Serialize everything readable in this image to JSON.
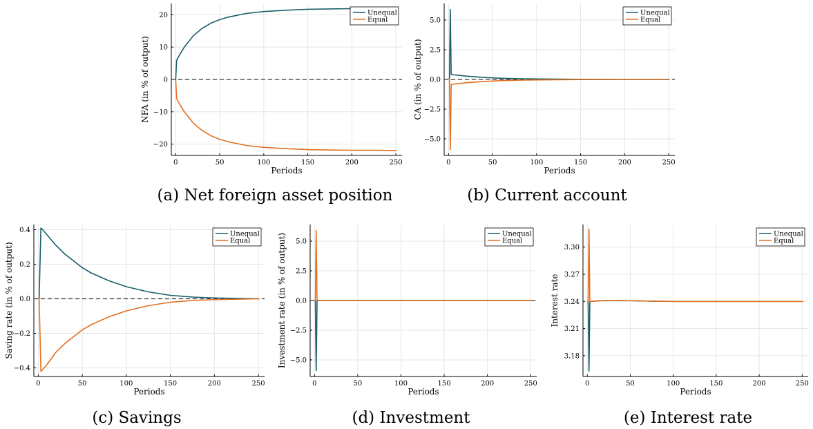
{
  "colors": {
    "unequal": "#175e68",
    "equal": "#e26f1f",
    "zero_line": "#333333",
    "grid": "#e6e6e6"
  },
  "chart_data": [
    {
      "type": "line",
      "caption": "(a) Net foreign asset position",
      "xlabel": "Periods",
      "ylabel": "NFA (in % of output)",
      "xlim": [
        -5,
        257
      ],
      "ylim": [
        -23.5,
        23.5
      ],
      "xticks": [
        0,
        50,
        100,
        150,
        200,
        250
      ],
      "xtick_labels": [
        "0",
        "50",
        "100",
        "150",
        "200",
        "250"
      ],
      "yticks": [
        -20,
        -10,
        0,
        10,
        20
      ],
      "ytick_labels": [
        "−20",
        "−10",
        "0",
        "10",
        "20"
      ],
      "grid": true,
      "legend": "top-right",
      "zero_line": 0,
      "series": [
        {
          "name": "Unequal",
          "color": "#175e68",
          "x": [
            0,
            1,
            2,
            5,
            10,
            20,
            30,
            40,
            50,
            60,
            80,
            100,
            125,
            150,
            175,
            200,
            225,
            251
          ],
          "y": [
            0,
            5.9,
            6.4,
            7.9,
            10.1,
            13.5,
            15.8,
            17.4,
            18.5,
            19.3,
            20.4,
            21.0,
            21.4,
            21.7,
            21.8,
            21.9,
            21.9,
            22.0
          ]
        },
        {
          "name": "Equal",
          "color": "#e26f1f",
          "x": [
            0,
            1,
            2,
            5,
            10,
            20,
            30,
            40,
            50,
            60,
            80,
            100,
            125,
            150,
            175,
            200,
            225,
            251
          ],
          "y": [
            0,
            -5.9,
            -6.4,
            -7.9,
            -10.1,
            -13.5,
            -15.8,
            -17.4,
            -18.5,
            -19.3,
            -20.4,
            -21.0,
            -21.4,
            -21.7,
            -21.8,
            -21.9,
            -21.9,
            -22.0
          ]
        }
      ]
    },
    {
      "type": "line",
      "caption": "(b) Current account",
      "xlabel": "Periods",
      "ylabel": "CA (in % of output)",
      "xlim": [
        -5,
        257
      ],
      "ylim": [
        -6.4,
        6.4
      ],
      "xticks": [
        0,
        50,
        100,
        150,
        200,
        250
      ],
      "xtick_labels": [
        "0",
        "50",
        "100",
        "150",
        "200",
        "250"
      ],
      "yticks": [
        -5,
        -2.5,
        0,
        2.5,
        5
      ],
      "ytick_labels": [
        "−5.0",
        "−2.5",
        "0.0",
        "2.5",
        "5.0"
      ],
      "grid": true,
      "legend": "top-right",
      "zero_line": 0,
      "series": [
        {
          "name": "Unequal",
          "color": "#175e68",
          "x": [
            0,
            1,
            2,
            3,
            5,
            10,
            20,
            40,
            60,
            80,
            100,
            150,
            200,
            251
          ],
          "y": [
            0,
            0,
            5.9,
            0.42,
            0.4,
            0.36,
            0.28,
            0.17,
            0.1,
            0.06,
            0.04,
            0.01,
            0.0,
            0.0
          ]
        },
        {
          "name": "Equal",
          "color": "#e26f1f",
          "x": [
            0,
            1,
            2,
            3,
            5,
            10,
            20,
            40,
            60,
            80,
            100,
            150,
            200,
            251
          ],
          "y": [
            0,
            0,
            -5.9,
            -0.42,
            -0.4,
            -0.36,
            -0.28,
            -0.17,
            -0.1,
            -0.06,
            -0.04,
            -0.01,
            0.0,
            0.0
          ]
        }
      ]
    },
    {
      "type": "line",
      "caption": "(c) Savings",
      "xlabel": "Periods",
      "ylabel": "Saving rate (in % of output)",
      "xlim": [
        -5,
        257
      ],
      "ylim": [
        -0.45,
        0.43
      ],
      "xticks": [
        0,
        50,
        100,
        150,
        200,
        250
      ],
      "xtick_labels": [
        "0",
        "50",
        "100",
        "150",
        "200",
        "250"
      ],
      "yticks": [
        -0.4,
        -0.2,
        0,
        0.2,
        0.4
      ],
      "ytick_labels": [
        "−0.4",
        "−0.2",
        "0.0",
        "0.2",
        "0.4"
      ],
      "grid": true,
      "legend": "top-right",
      "zero_line": 0,
      "series": [
        {
          "name": "Unequal",
          "color": "#175e68",
          "x": [
            0,
            1,
            2,
            3,
            5,
            10,
            20,
            30,
            40,
            50,
            60,
            80,
            100,
            125,
            150,
            175,
            200,
            251
          ],
          "y": [
            0,
            0,
            0.2,
            0.41,
            0.4,
            0.37,
            0.31,
            0.26,
            0.22,
            0.18,
            0.15,
            0.105,
            0.07,
            0.04,
            0.02,
            0.01,
            0.005,
            0.0
          ]
        },
        {
          "name": "Equal",
          "color": "#e26f1f",
          "x": [
            0,
            1,
            2,
            3,
            5,
            10,
            20,
            30,
            40,
            50,
            60,
            80,
            100,
            125,
            150,
            175,
            200,
            251
          ],
          "y": [
            0,
            0,
            -0.2,
            -0.42,
            -0.41,
            -0.38,
            -0.31,
            -0.26,
            -0.22,
            -0.18,
            -0.15,
            -0.105,
            -0.07,
            -0.04,
            -0.02,
            -0.01,
            -0.005,
            0.0
          ]
        }
      ]
    },
    {
      "type": "line",
      "caption": "(d) Investment",
      "xlabel": "Periods",
      "ylabel": "Investment rate (in % of output)",
      "xlim": [
        -5,
        257
      ],
      "ylim": [
        -6.4,
        6.4
      ],
      "xticks": [
        0,
        50,
        100,
        150,
        200,
        250
      ],
      "xtick_labels": [
        "0",
        "50",
        "100",
        "150",
        "200",
        "250"
      ],
      "yticks": [
        -5,
        -2.5,
        0,
        2.5,
        5
      ],
      "ytick_labels": [
        "−5.0",
        "−2.5",
        "0.0",
        "2.5",
        "5.0"
      ],
      "grid": true,
      "legend": "top-right",
      "zero_line": 0,
      "series": [
        {
          "name": "Unequal",
          "color": "#175e68",
          "x": [
            0,
            1,
            2,
            3,
            5,
            50,
            100,
            150,
            200,
            251
          ],
          "y": [
            0,
            0,
            -5.9,
            0,
            0,
            0,
            0,
            0,
            0,
            0
          ]
        },
        {
          "name": "Equal",
          "color": "#e26f1f",
          "x": [
            0,
            1,
            2,
            3,
            5,
            50,
            100,
            150,
            200,
            251
          ],
          "y": [
            0,
            0,
            5.9,
            0,
            0,
            0,
            0,
            0,
            0,
            0
          ]
        }
      ]
    },
    {
      "type": "line",
      "caption": "(e) Interest rate",
      "xlabel": "Periods",
      "ylabel": "Interest rate",
      "xlim": [
        -5,
        257
      ],
      "ylim": [
        3.157,
        3.325
      ],
      "xticks": [
        0,
        50,
        100,
        150,
        200,
        250
      ],
      "xtick_labels": [
        "0",
        "50",
        "100",
        "150",
        "200",
        "250"
      ],
      "yticks": [
        3.18,
        3.21,
        3.24,
        3.27,
        3.3
      ],
      "ytick_labels": [
        "3.18",
        "3.21",
        "3.24",
        "3.27",
        "3.30"
      ],
      "grid": true,
      "legend": "top-right",
      "zero_line": null,
      "series": [
        {
          "name": "Unequal",
          "color": "#175e68",
          "x": [
            0,
            1,
            2,
            3,
            5,
            10,
            25,
            50,
            75,
            100,
            150,
            200,
            251
          ],
          "y": [
            3.24,
            3.24,
            3.163,
            3.24,
            3.24,
            3.2405,
            3.2412,
            3.2408,
            3.2403,
            3.24,
            3.24,
            3.24,
            3.24
          ]
        },
        {
          "name": "Equal",
          "color": "#e26f1f",
          "x": [
            0,
            1,
            2,
            3,
            5,
            10,
            25,
            50,
            75,
            100,
            150,
            200,
            251
          ],
          "y": [
            3.24,
            3.24,
            3.32,
            3.24,
            3.24,
            3.2405,
            3.2412,
            3.2408,
            3.2403,
            3.24,
            3.24,
            3.24,
            3.24
          ]
        }
      ]
    }
  ]
}
